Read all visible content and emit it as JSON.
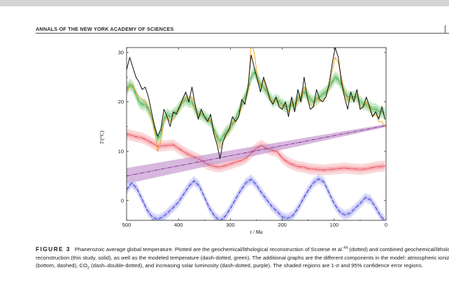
{
  "journal": {
    "running_head": "ANNALS OF THE NEW YORK ACADEMY OF SCIENCES"
  },
  "figure": {
    "label": "FIGURE 3",
    "caption_segments": {
      "part1": "Phanerozoic average global temperature. Plotted are the geochemical/lithological reconstruction of Scotese et al.",
      "ref": "44",
      "part2": " (dotted) and combined geochemical/lithological reconstruction (this study, solid), as well as the modeled temperature (dash-dotted, green). The additional graphs are the different components in the model: atmospheric ionization (bottom, dashed), CO",
      "co2_sub": "2",
      "part3": " (dash–double-dotted), and increasing solar luminosity (dash-dotted, purple). The shaded regions are 1-σ and 95% confidence error regions."
    }
  },
  "chart_data": {
    "type": "line",
    "xlabel": "t / Ma",
    "ylabel": "T/(°C)",
    "xlim": [
      500,
      0
    ],
    "ylim": [
      -4,
      31
    ],
    "x_ticks": [
      500,
      400,
      300,
      200,
      100,
      0
    ],
    "y_ticks": [
      0,
      10,
      20,
      30
    ],
    "colors": {
      "reconstruction_this_study": "#111111",
      "scotese": "#f39c12",
      "modeled": "#2e9d43",
      "modeled_band": "#8fd08f",
      "co2": "#e0303a",
      "co2_band": "#f7a8ad",
      "luminosity": "#7a2a8a",
      "luminosity_band": "#c9a0d3",
      "ionization": "#2a2ad8",
      "ionization_band": "#b7b7f3"
    },
    "series": [
      {
        "key": "reconstruction_this_study",
        "style": "solid",
        "x": [
          500,
          494,
          488,
          482,
          476,
          470,
          464,
          458,
          452,
          446,
          440,
          434,
          428,
          422,
          416,
          410,
          404,
          398,
          392,
          386,
          380,
          374,
          368,
          362,
          356,
          350,
          344,
          338,
          332,
          326,
          320,
          314,
          308,
          302,
          296,
          290,
          284,
          278,
          272,
          266,
          260,
          254,
          248,
          242,
          236,
          230,
          224,
          218,
          212,
          206,
          200,
          194,
          188,
          182,
          176,
          170,
          164,
          158,
          152,
          146,
          140,
          134,
          128,
          122,
          116,
          110,
          104,
          98,
          92,
          86,
          80,
          74,
          68,
          62,
          56,
          50,
          44,
          38,
          32,
          26,
          20,
          14,
          8,
          2
        ],
        "y": [
          26.5,
          29,
          27,
          25,
          24,
          22.5,
          23,
          21,
          18,
          15,
          13,
          14.5,
          18.5,
          17,
          15,
          18,
          17.5,
          19,
          20.5,
          22,
          20,
          23,
          19.5,
          16.5,
          18.5,
          17,
          16,
          17.5,
          13.5,
          11.5,
          8.5,
          12,
          13.5,
          14.5,
          17,
          16,
          17,
          20.5,
          19.5,
          23,
          29.5,
          27,
          24.5,
          22,
          25,
          23,
          20.5,
          19.5,
          21,
          19,
          18.5,
          20,
          17,
          21,
          18,
          22.5,
          20,
          25,
          21,
          18.5,
          19,
          22.5,
          20.5,
          20,
          21,
          23.5,
          27.5,
          31,
          29,
          24,
          21,
          18.5,
          22,
          20,
          22.5,
          18.5,
          19,
          21,
          19,
          17,
          18,
          16.5,
          19,
          16.5
        ]
      },
      {
        "key": "scotese",
        "style": "dotted",
        "x": [
          500,
          494,
          488,
          482,
          476,
          470,
          464,
          458,
          452,
          446,
          440,
          434,
          428,
          422,
          416,
          410,
          404,
          398,
          392,
          386,
          380,
          374,
          368,
          362,
          356,
          350,
          344,
          338,
          332,
          326,
          320,
          314,
          308,
          302,
          296,
          290,
          284,
          278,
          272,
          266,
          260,
          254,
          248,
          242,
          236,
          230,
          224,
          218,
          212,
          206,
          200,
          194,
          188,
          182,
          176,
          170,
          164,
          158,
          152,
          146,
          140,
          134,
          128,
          122,
          116,
          110,
          104,
          98,
          92,
          86,
          80,
          74,
          68,
          62,
          56,
          50,
          44,
          38,
          32,
          26,
          20,
          14,
          8,
          2
        ],
        "y": [
          22,
          23,
          23.5,
          22,
          21,
          20.5,
          20,
          19,
          17,
          14,
          10,
          12,
          16,
          17,
          16,
          16.5,
          17.5,
          18.5,
          20,
          21,
          20.5,
          21,
          18.5,
          17,
          18,
          17,
          16,
          16.5,
          14,
          12.5,
          10.5,
          12,
          13,
          14,
          16,
          16,
          17,
          19,
          20,
          22,
          32,
          30,
          25,
          23,
          24.5,
          22.5,
          21,
          20,
          20.5,
          19.5,
          19,
          19.5,
          18,
          20,
          18,
          21,
          20,
          23,
          21,
          19.5,
          19,
          21,
          20,
          20.5,
          21,
          23,
          26,
          29,
          28,
          25,
          22,
          20,
          21,
          20.5,
          21.5,
          19,
          19,
          20,
          18.5,
          17,
          17.5,
          16,
          16,
          15
        ]
      },
      {
        "key": "modeled",
        "style": "dash-dotted",
        "x": [
          500,
          494,
          488,
          482,
          476,
          470,
          464,
          458,
          452,
          446,
          440,
          434,
          428,
          422,
          416,
          410,
          404,
          398,
          392,
          386,
          380,
          374,
          368,
          362,
          356,
          350,
          344,
          338,
          332,
          326,
          320,
          314,
          308,
          302,
          296,
          290,
          284,
          278,
          272,
          266,
          260,
          254,
          248,
          242,
          236,
          230,
          224,
          218,
          212,
          206,
          200,
          194,
          188,
          182,
          176,
          170,
          164,
          158,
          152,
          146,
          140,
          134,
          128,
          122,
          116,
          110,
          104,
          98,
          92,
          86,
          80,
          74,
          68,
          62,
          56,
          50,
          44,
          38,
          32,
          26,
          20,
          14,
          8,
          2
        ],
        "y": [
          22.5,
          23.5,
          23,
          21.5,
          20,
          19.5,
          19.5,
          18.5,
          17,
          14.5,
          12.5,
          13.5,
          16.5,
          17.5,
          17,
          17.5,
          18,
          19,
          20,
          20.5,
          20,
          20,
          18.5,
          17.5,
          17.5,
          17,
          16.5,
          16,
          14.5,
          13,
          12,
          13,
          14,
          14.5,
          15.5,
          16.5,
          18,
          19.5,
          21,
          22.5,
          25,
          26,
          25,
          23.5,
          23,
          22,
          21,
          20,
          20.5,
          20,
          19.5,
          19,
          19,
          19.5,
          19.5,
          20.5,
          21,
          22,
          21.5,
          20.5,
          20,
          20.5,
          21,
          21.5,
          22,
          23,
          24,
          25,
          24.5,
          23.5,
          22,
          21,
          21,
          21,
          21,
          20,
          19.5,
          19.5,
          19,
          18.5,
          18.5,
          18,
          18,
          17.5
        ],
        "band_1sigma": 0.6,
        "band_95": 1.2
      },
      {
        "key": "co2",
        "style": "dash-double-dotted",
        "x": [
          500,
          490,
          480,
          470,
          460,
          450,
          440,
          430,
          420,
          410,
          400,
          390,
          380,
          370,
          360,
          350,
          340,
          330,
          320,
          310,
          300,
          290,
          280,
          270,
          260,
          250,
          240,
          230,
          220,
          210,
          200,
          190,
          180,
          170,
          160,
          150,
          140,
          130,
          120,
          110,
          100,
          90,
          80,
          70,
          60,
          50,
          40,
          30,
          20,
          10,
          2
        ],
        "y": [
          13.5,
          13.2,
          12.9,
          12.7,
          12.2,
          11.6,
          11,
          11.1,
          11.2,
          11.3,
          10.6,
          9.9,
          9.3,
          8.8,
          8.4,
          7.7,
          7.2,
          6.9,
          6.8,
          7.1,
          7.4,
          7.8,
          8.1,
          8.6,
          9.6,
          10.6,
          11.2,
          10.6,
          10.2,
          9.9,
          8.6,
          7.8,
          7.3,
          6.9,
          6.8,
          6.5,
          6.4,
          6.3,
          6.2,
          6.3,
          6.4,
          6.5,
          6.6,
          6.5,
          6.4,
          6.3,
          6.4,
          6.6,
          6.8,
          6.9,
          7
        ],
        "band_1sigma": 0.5,
        "band_95": 1.1
      },
      {
        "key": "luminosity",
        "style": "dash-dotted",
        "x": [
          500,
          0
        ],
        "y": [
          5,
          15.2
        ],
        "band_start": 1.6,
        "band_end": 0.3
      },
      {
        "key": "ionization",
        "style": "dashed",
        "x": [
          500,
          490,
          480,
          470,
          460,
          450,
          440,
          430,
          420,
          410,
          400,
          390,
          380,
          370,
          360,
          350,
          340,
          330,
          320,
          310,
          300,
          290,
          280,
          270,
          260,
          250,
          240,
          230,
          220,
          210,
          200,
          190,
          180,
          170,
          160,
          150,
          140,
          130,
          120,
          110,
          100,
          90,
          80,
          70,
          60,
          50,
          40,
          30,
          20,
          10,
          2
        ],
        "y": [
          2.2,
          3.6,
          2.4,
          0.2,
          -2,
          -3.4,
          -3.8,
          -3.3,
          -2.4,
          -1.4,
          -0.3,
          1.3,
          2.9,
          4,
          3,
          0.7,
          -1.6,
          -3.2,
          -4.1,
          -3.2,
          -1.6,
          0.3,
          2.1,
          3.6,
          4.3,
          3.2,
          1.6,
          0.2,
          -1.2,
          -2.2,
          -3.3,
          -3.6,
          -3.1,
          -1.6,
          0.3,
          2.1,
          3.6,
          4.4,
          3.8,
          1.6,
          -0.6,
          -2.2,
          -2.9,
          -2.6,
          -1.6,
          -0.6,
          0.6,
          0.2,
          -1.4,
          -3.2,
          -4.1
        ],
        "band_1sigma": 0.5,
        "band_95": 1.0
      }
    ]
  }
}
